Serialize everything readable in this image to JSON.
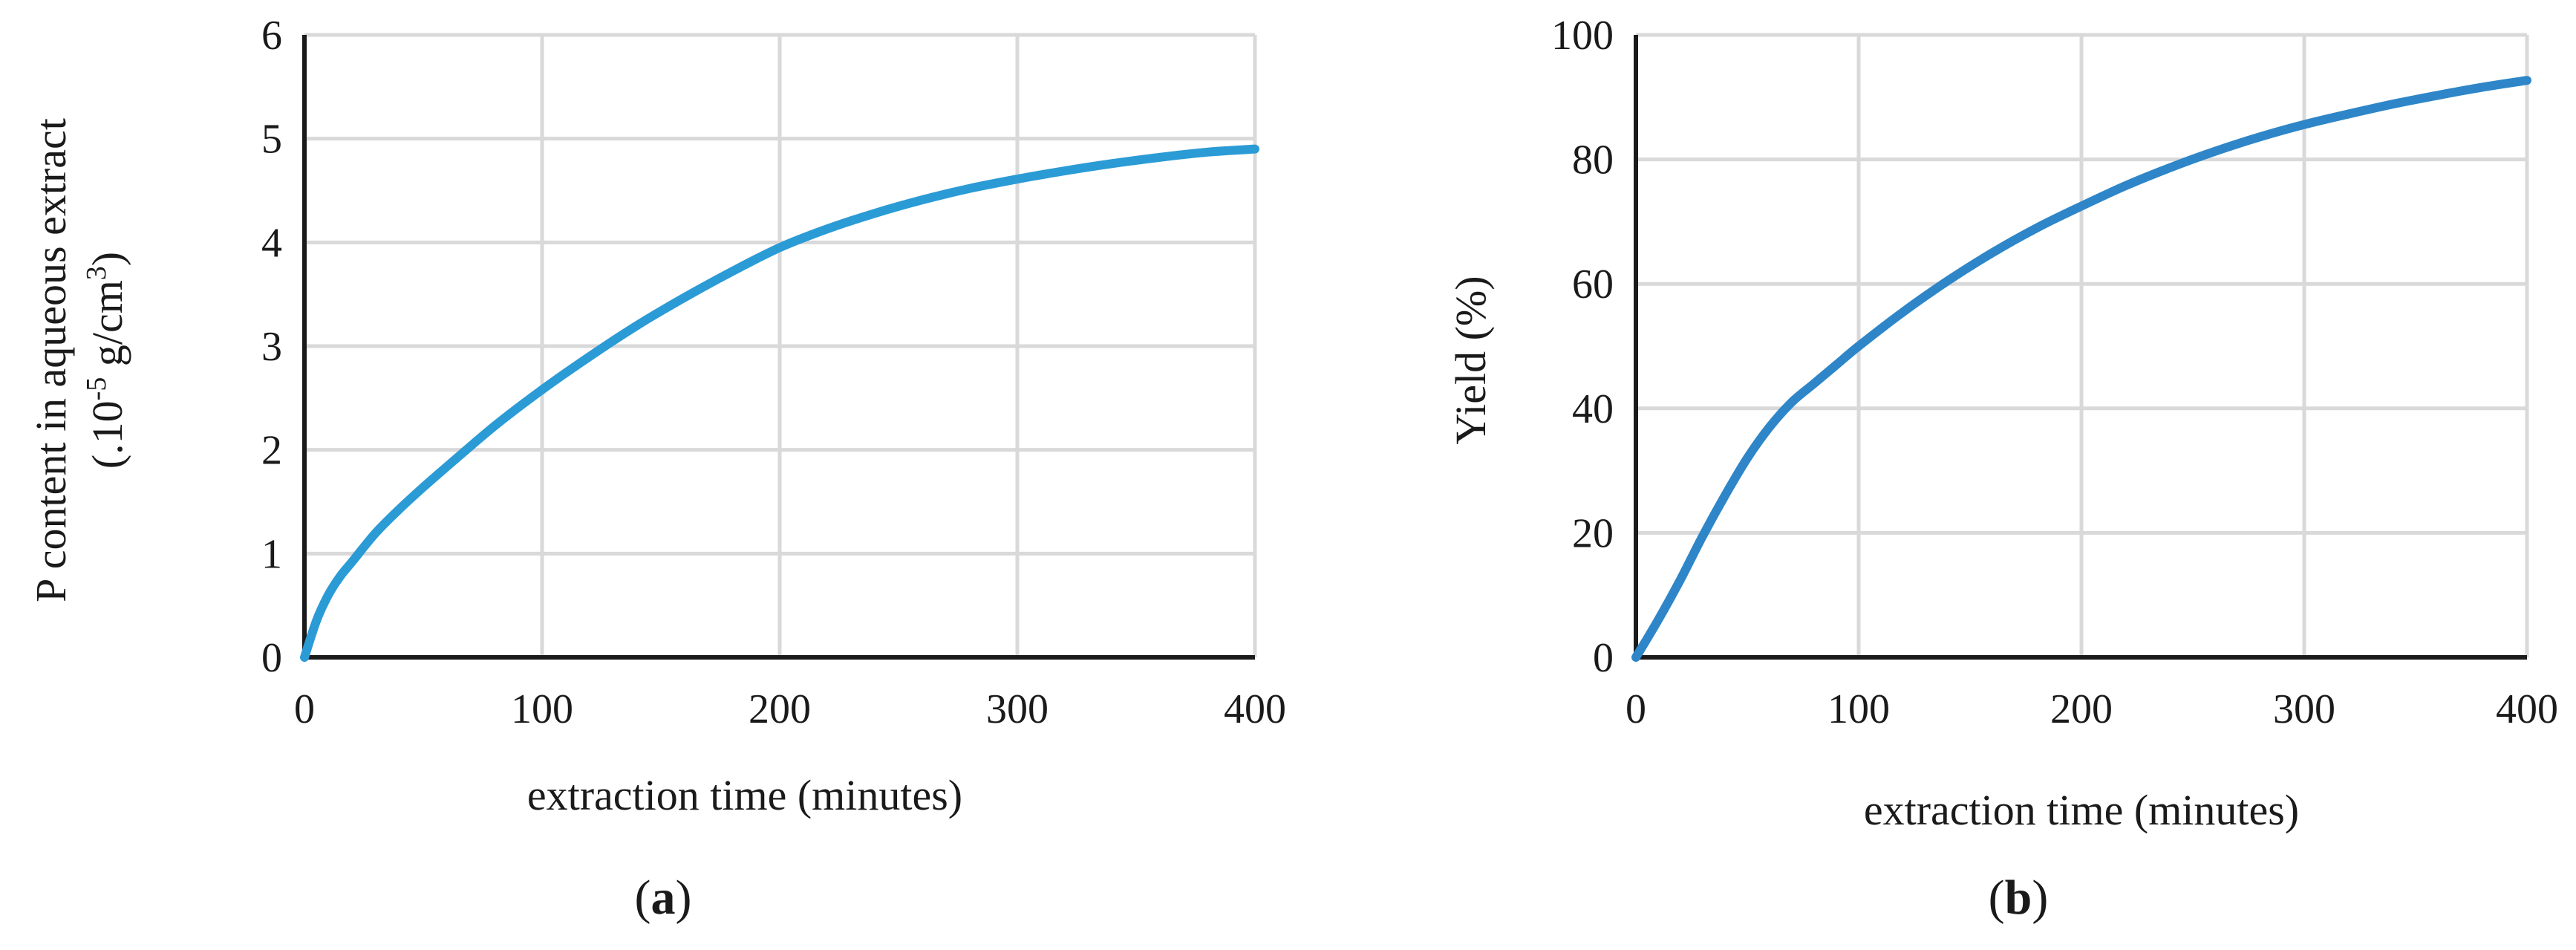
{
  "chart_data": [
    {
      "type": "line",
      "panel_label": {
        "prefix": "(",
        "letter": "a",
        "suffix": ")"
      },
      "title": "",
      "xlabel": "extraction time (minutes)",
      "ylabel_line1": "P  content in aqueous extract",
      "ylabel_line2": {
        "before": "(.10",
        "sup1": "-5",
        "middle": " g/cm",
        "sup2": "3",
        "after": ")"
      },
      "xlim": [
        0,
        400
      ],
      "ylim": [
        0,
        6
      ],
      "xticks": [
        0,
        100,
        200,
        300,
        400
      ],
      "yticks": [
        0,
        1,
        2,
        3,
        4,
        5,
        6
      ],
      "grid": true,
      "line_color": "#2b9bd6",
      "series": [
        {
          "x": [
            0,
            5,
            10,
            15,
            20,
            30,
            40,
            50,
            60,
            80,
            100,
            120,
            140,
            160,
            180,
            200,
            220,
            240,
            260,
            280,
            300,
            320,
            340,
            360,
            380,
            400
          ],
          "y": [
            0,
            0.35,
            0.6,
            0.78,
            0.92,
            1.2,
            1.43,
            1.64,
            1.84,
            2.23,
            2.58,
            2.9,
            3.2,
            3.47,
            3.72,
            3.95,
            4.13,
            4.28,
            4.41,
            4.52,
            4.61,
            4.69,
            4.76,
            4.82,
            4.87,
            4.9
          ]
        }
      ]
    },
    {
      "type": "line",
      "panel_label": {
        "prefix": "(",
        "letter": "b",
        "suffix": ")"
      },
      "title": "",
      "xlabel": "extraction time (minutes)",
      "ylabel": "Yield  (%)",
      "xlim": [
        0,
        400
      ],
      "ylim": [
        0,
        100
      ],
      "xticks": [
        0,
        100,
        200,
        300,
        400
      ],
      "yticks": [
        0,
        20,
        40,
        60,
        80,
        100
      ],
      "grid": true,
      "line_color": "#2e86c8",
      "series": [
        {
          "x": [
            0,
            10,
            20,
            30,
            40,
            50,
            60,
            70,
            80,
            90,
            100,
            120,
            140,
            160,
            180,
            200,
            220,
            240,
            260,
            280,
            300,
            320,
            340,
            360,
            380,
            400
          ],
          "y": [
            0,
            6,
            12.5,
            19.5,
            26,
            32,
            37,
            41,
            44,
            47,
            50,
            55.5,
            60.5,
            65,
            69,
            72.5,
            75.8,
            78.7,
            81.3,
            83.6,
            85.6,
            87.3,
            88.9,
            90.3,
            91.6,
            92.7
          ]
        }
      ]
    }
  ]
}
